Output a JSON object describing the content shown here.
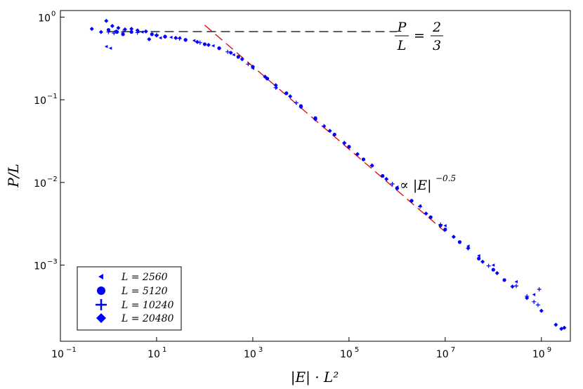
{
  "chart_data": {
    "type": "scatter",
    "title": "",
    "xlabel": "|E| · L²",
    "ylabel": "P/L",
    "xscale": "log",
    "yscale": "log",
    "xlim": [
      0.1,
      4000000000
    ],
    "ylim": [
      0.00012,
      1.2
    ],
    "grid": false,
    "legend_position": "bottom-left",
    "x_ticks": [
      {
        "base": "10",
        "exp": "−1",
        "value": 0.1
      },
      {
        "base": "10",
        "exp": "1",
        "value": 10
      },
      {
        "base": "10",
        "exp": "3",
        "value": 1000
      },
      {
        "base": "10",
        "exp": "5",
        "value": 100000
      },
      {
        "base": "10",
        "exp": "7",
        "value": 10000000
      },
      {
        "base": "10",
        "exp": "9",
        "value": 1000000000
      }
    ],
    "y_ticks": [
      {
        "base": "10",
        "exp": "0",
        "value": 1
      },
      {
        "base": "10",
        "exp": "−1",
        "value": 0.1
      },
      {
        "base": "10",
        "exp": "−2",
        "value": 0.01
      },
      {
        "base": "10",
        "exp": "−3",
        "value": 0.001
      }
    ],
    "color": "#0000ff",
    "reference_lines": [
      {
        "name": "plateau",
        "kind": "horizontal",
        "y": 0.667,
        "x_range": [
          1,
          1000000
        ],
        "color": "#000000",
        "dash": "dash"
      },
      {
        "name": "power_law",
        "kind": "power",
        "exponent": -0.5,
        "prefactor": 8,
        "x_range": [
          100,
          10000000
        ],
        "color": "#e00000",
        "dash": "dash"
      }
    ],
    "annotations": {
      "plateau_label": {
        "num": "P",
        "den": "L",
        "eq": "=",
        "val_num": "2",
        "val_den": "3"
      },
      "slope_label": {
        "text": "∝ |E|",
        "exponent": "−0.5"
      }
    },
    "legend_labels": {
      "s2560": "L = 2560",
      "s5120": "L = 5120",
      "s10240": "L = 10240",
      "s20480": "L = 20480"
    },
    "series": [
      {
        "name": "L = 2560",
        "marker": "triangle-left",
        "points": [
          [
            0.9,
            0.44
          ],
          [
            1.1,
            0.42
          ],
          [
            1.4,
            0.68
          ],
          [
            5,
            0.66
          ],
          [
            12,
            0.56
          ],
          [
            20,
            0.57
          ],
          [
            30,
            0.56
          ],
          [
            60,
            0.52
          ],
          [
            150,
            0.45
          ],
          [
            400,
            0.35
          ],
          [
            1000,
            0.24
          ],
          [
            3000,
            0.14
          ],
          [
            10000,
            0.082
          ],
          [
            30000,
            0.048
          ],
          [
            100000,
            0.027
          ],
          [
            300000,
            0.016
          ],
          [
            1000000,
            0.0088
          ],
          [
            3000000,
            0.0052
          ],
          [
            10000000,
            0.003
          ],
          [
            30000000,
            0.0017
          ],
          [
            50000000,
            0.0013
          ],
          [
            100000000,
            0.001
          ],
          [
            300000000,
            0.00063
          ],
          [
            700000000,
            0.00044
          ]
        ]
      },
      {
        "name": "L = 5120",
        "marker": "circle",
        "points": [
          [
            1,
            0.7
          ],
          [
            1.5,
            0.66
          ],
          [
            2,
            0.62
          ],
          [
            3,
            0.66
          ],
          [
            8,
            0.62
          ],
          [
            15,
            0.58
          ],
          [
            40,
            0.53
          ],
          [
            100,
            0.47
          ],
          [
            200,
            0.42
          ],
          [
            500,
            0.33
          ],
          [
            1000,
            0.25
          ],
          [
            2000,
            0.18
          ],
          [
            5000,
            0.12
          ],
          [
            10000,
            0.084
          ],
          [
            20000,
            0.06
          ],
          [
            50000,
            0.038
          ],
          [
            100000,
            0.027
          ],
          [
            200000,
            0.019
          ],
          [
            500000,
            0.012
          ],
          [
            1000000,
            0.0085
          ],
          [
            2000000,
            0.006
          ],
          [
            5000000,
            0.0038
          ],
          [
            10000000,
            0.0027
          ],
          [
            20000000,
            0.0019
          ],
          [
            50000000,
            0.0012
          ],
          [
            100000000,
            0.00088
          ],
          [
            170000000,
            0.00066
          ]
        ]
      },
      {
        "name": "L = 10240",
        "marker": "plus",
        "points": [
          [
            1,
            0.66
          ],
          [
            1.3,
            0.64
          ],
          [
            2,
            0.66
          ],
          [
            4,
            0.65
          ],
          [
            10,
            0.61
          ],
          [
            30,
            0.55
          ],
          [
            80,
            0.49
          ],
          [
            300,
            0.38
          ],
          [
            800,
            0.27
          ],
          [
            3000,
            0.14
          ],
          [
            8000,
            0.092
          ],
          [
            30000,
            0.048
          ],
          [
            80000,
            0.03
          ],
          [
            300000,
            0.016
          ],
          [
            800000,
            0.0096
          ],
          [
            3000000,
            0.0051
          ],
          [
            8000000,
            0.0031
          ],
          [
            30000000,
            0.0016
          ],
          [
            80000000,
            0.00098
          ],
          [
            300000000,
            0.00056
          ],
          [
            500000000,
            0.00042
          ],
          [
            700000000,
            0.00036
          ],
          [
            900000000,
            0.00051
          ],
          [
            850000000,
            0.00033
          ]
        ]
      },
      {
        "name": "L = 20480",
        "marker": "diamond",
        "points": [
          [
            0.45,
            0.72
          ],
          [
            0.7,
            0.66
          ],
          [
            0.9,
            0.9
          ],
          [
            1.2,
            0.78
          ],
          [
            1.6,
            0.74
          ],
          [
            2.2,
            0.71
          ],
          [
            3,
            0.72
          ],
          [
            4,
            0.69
          ],
          [
            6,
            0.67
          ],
          [
            7,
            0.54
          ],
          [
            10,
            0.6
          ],
          [
            15,
            0.58
          ],
          [
            25,
            0.56
          ],
          [
            40,
            0.53
          ],
          [
            70,
            0.5
          ],
          [
            120,
            0.46
          ],
          [
            200,
            0.42
          ],
          [
            350,
            0.37
          ],
          [
            600,
            0.31
          ],
          [
            1000,
            0.25
          ],
          [
            1800,
            0.19
          ],
          [
            3000,
            0.15
          ],
          [
            6000,
            0.11
          ],
          [
            10000,
            0.082
          ],
          [
            20000,
            0.058
          ],
          [
            40000,
            0.042
          ],
          [
            80000,
            0.03
          ],
          [
            150000,
            0.022
          ],
          [
            300000,
            0.016
          ],
          [
            600000,
            0.011
          ],
          [
            1000000,
            0.0085
          ],
          [
            2000000,
            0.006
          ],
          [
            4000000,
            0.0042
          ],
          [
            8000000,
            0.003
          ],
          [
            15000000,
            0.0022
          ],
          [
            30000000,
            0.0016
          ],
          [
            60000000,
            0.0011
          ],
          [
            120000000,
            0.0008
          ],
          [
            250000000,
            0.00055
          ],
          [
            500000000,
            0.0004
          ],
          [
            1000000000,
            0.00028
          ],
          [
            2000000000,
            0.00019
          ],
          [
            2600000000,
            0.00017
          ],
          [
            3000000000,
            0.000175
          ]
        ]
      }
    ]
  }
}
